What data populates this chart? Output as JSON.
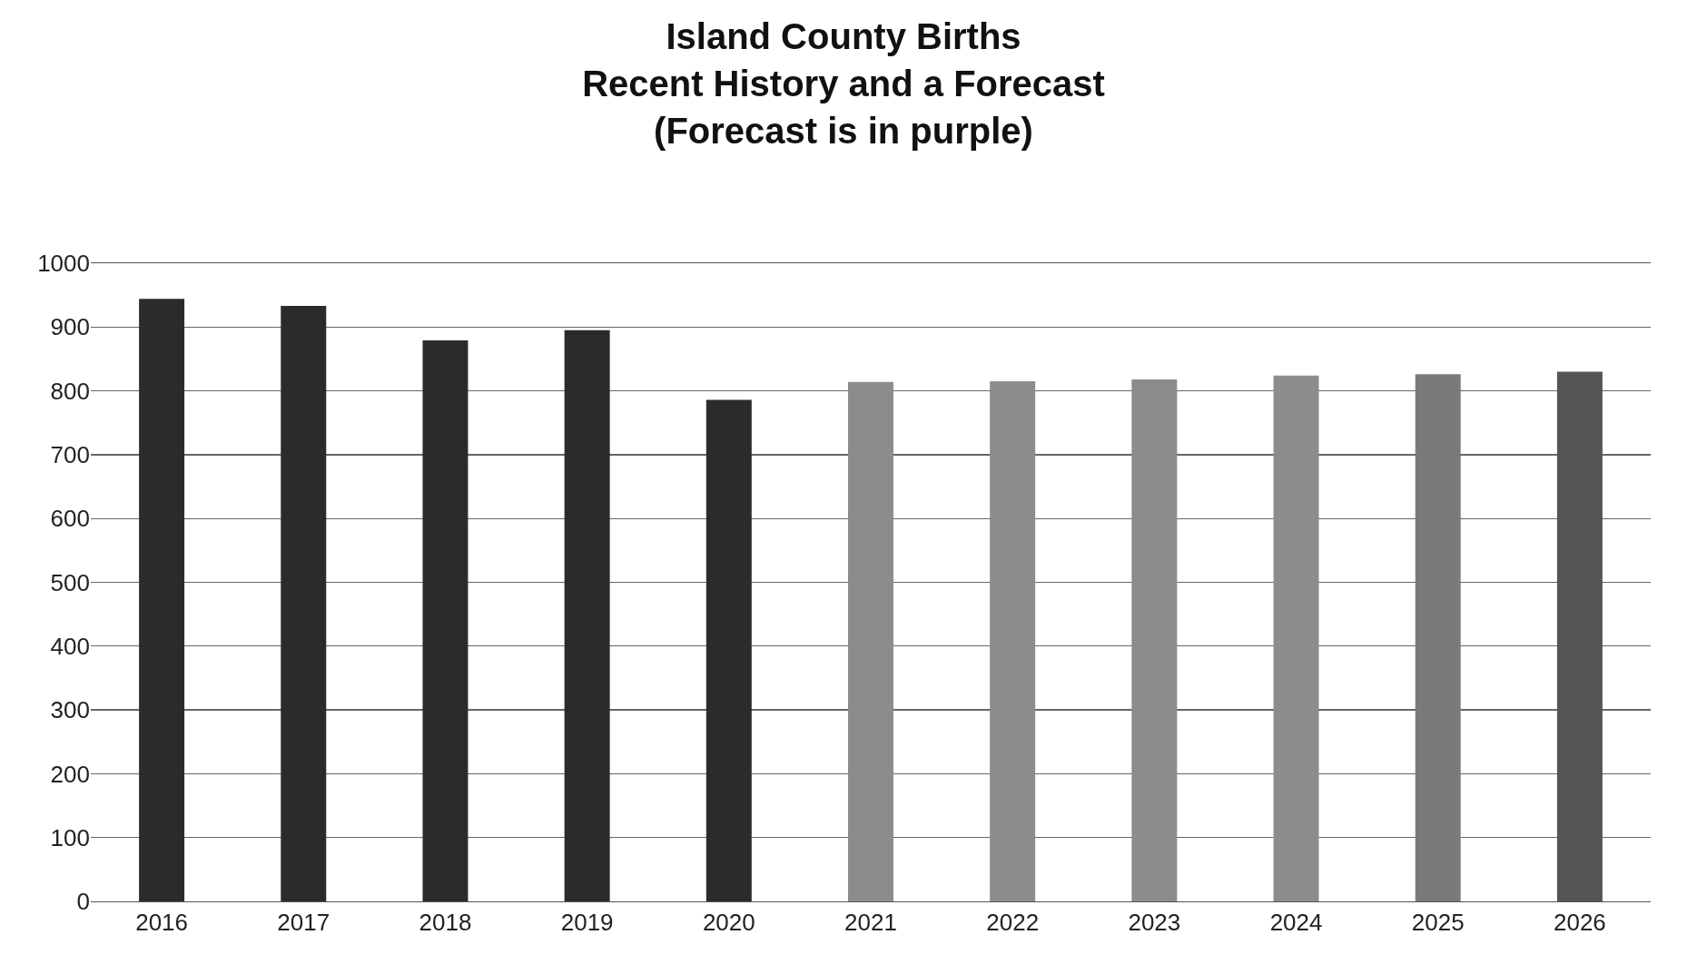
{
  "chart_data": {
    "type": "bar",
    "title": "Island County Births\nRecent History and a Forecast\n(Forecast is in purple)",
    "categories": [
      "2016",
      "2017",
      "2018",
      "2019",
      "2020",
      "2021",
      "2022",
      "2023",
      "2024",
      "2025",
      "2026"
    ],
    "values": [
      944,
      933,
      879,
      895,
      786,
      814,
      815,
      818,
      824,
      826,
      830
    ],
    "colors": [
      "#2b2b2b",
      "#2b2b2b",
      "#2b2b2b",
      "#2b2b2b",
      "#2b2b2b",
      "#8c8c8c",
      "#8c8c8c",
      "#8c8c8c",
      "#8c8c8c",
      "#7a7a7a",
      "#555555"
    ],
    "ylim": [
      0,
      1000
    ],
    "yticks": [
      0,
      100,
      200,
      300,
      400,
      500,
      600,
      700,
      800,
      900,
      1000
    ],
    "grid": "y"
  }
}
